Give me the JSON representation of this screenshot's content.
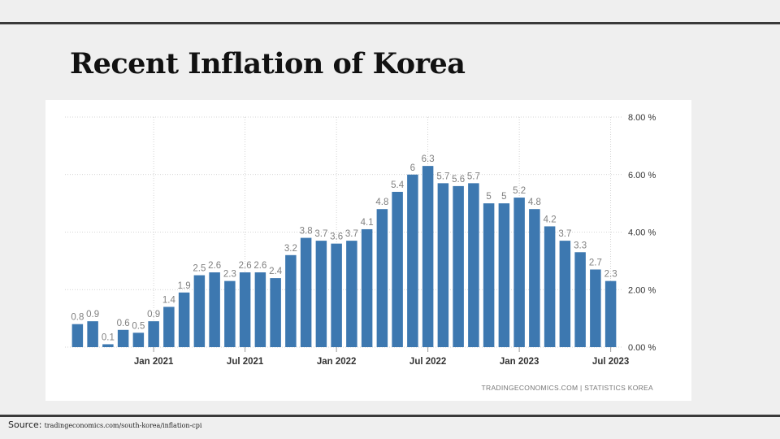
{
  "slide": {
    "title": "Recent Inflation of Korea"
  },
  "footer": {
    "source_label": "Source:",
    "source_url": "tradingeconomics.com/south-korea/inflation-cpi"
  },
  "colors": {
    "bar": "#3d78b0",
    "grid": "#c8c8c8",
    "label": "#808080",
    "axis_text": "#333333"
  },
  "chart_data": {
    "type": "bar",
    "title": "",
    "xlabel": "",
    "ylabel": "",
    "ylim": [
      0,
      8
    ],
    "y_ticks": [
      "0.00 %",
      "2.00 %",
      "4.00 %",
      "6.00 %",
      "8.00 %"
    ],
    "y_tick_values": [
      0,
      2,
      4,
      6,
      8
    ],
    "x_tick_labels": [
      {
        "label": "Jan 2021",
        "index": 5
      },
      {
        "label": "Jul 2021",
        "index": 11
      },
      {
        "label": "Jan 2022",
        "index": 17
      },
      {
        "label": "Jul 2022",
        "index": 23
      },
      {
        "label": "Jan 2023",
        "index": 29
      },
      {
        "label": "Jul 2023",
        "index": 35
      }
    ],
    "categories": [
      "Aug 2020",
      "Sep 2020",
      "Oct 2020",
      "Nov 2020",
      "Dec 2020",
      "Jan 2021",
      "Feb 2021",
      "Mar 2021",
      "Apr 2021",
      "May 2021",
      "Jun 2021",
      "Jul 2021",
      "Aug 2021",
      "Sep 2021",
      "Oct 2021",
      "Nov 2021",
      "Dec 2021",
      "Jan 2022",
      "Feb 2022",
      "Mar 2022",
      "Apr 2022",
      "May 2022",
      "Jun 2022",
      "Jul 2022",
      "Aug 2022",
      "Sep 2022",
      "Oct 2022",
      "Nov 2022",
      "Dec 2022",
      "Jan 2023",
      "Feb 2023",
      "Mar 2023",
      "Apr 2023",
      "May 2023",
      "Jun 2023",
      "Jul 2023"
    ],
    "values": [
      0.8,
      0.9,
      0.1,
      0.6,
      0.5,
      0.9,
      1.4,
      1.9,
      2.5,
      2.6,
      2.3,
      2.6,
      2.6,
      2.4,
      3.2,
      3.8,
      3.7,
      3.6,
      3.7,
      4.1,
      4.8,
      5.4,
      6.0,
      6.3,
      5.7,
      5.6,
      5.7,
      5.0,
      5.0,
      5.2,
      4.8,
      4.2,
      3.7,
      3.3,
      2.7,
      2.3
    ],
    "data_labels": [
      "0.8",
      "0.9",
      "0.1",
      "0.6",
      "0.5",
      "0.9",
      "1.4",
      "1.9",
      "2.5",
      "2.6",
      "2.3",
      "2.6",
      "2.6",
      "2.4",
      "3.2",
      "3.8",
      "3.7",
      "3.6",
      "3.7",
      "4.1",
      "4.8",
      "5.4",
      "6",
      "6.3",
      "5.7",
      "5.6",
      "5.7",
      "5",
      "5",
      "5.2",
      "4.8",
      "4.2",
      "3.7",
      "3.3",
      "2.7",
      "2.3"
    ],
    "grid": true,
    "y_axis_position": "right",
    "watermark": "TRADINGECONOMICS.COM  |  STATISTICS KOREA"
  }
}
